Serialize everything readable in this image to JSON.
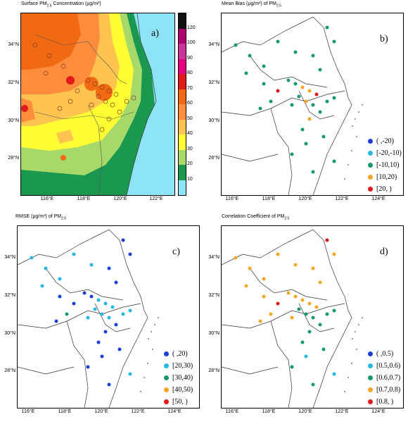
{
  "panels": {
    "a": {
      "title": "Surface PM",
      "title_sub": "2.5",
      "title_rest": " Concentration  (μg/m³)",
      "letter": "a)"
    },
    "b": {
      "title": "Mean Bias (μg/m³) of PM",
      "title_sub": "2.5",
      "letter": "b)"
    },
    "c": {
      "title": "RMSE (μg/m³) of PM",
      "title_sub": "2.5",
      "letter": "c)"
    },
    "d": {
      "title": "Correlation Coefficient of PM",
      "title_sub": "2.5",
      "letter": "d)"
    }
  },
  "axes": {
    "a_lat": [
      "34°N",
      "32°N",
      "30°N",
      "28°N"
    ],
    "a_lon": [
      "116°E",
      "118°E",
      "120°E",
      "122°E"
    ],
    "lat": [
      "34°N",
      "32°N",
      "30°N",
      "28°N"
    ],
    "lon": [
      "116°E",
      "118°E",
      "120°E",
      "122°E",
      "124°E"
    ]
  },
  "colorbar": {
    "ticks": [
      "120",
      "100",
      "90",
      "80",
      "70",
      "60",
      "50",
      "40",
      "30",
      "20",
      "10"
    ],
    "colors": [
      "#111111",
      "#b0006e",
      "#cc3399",
      "#e6007e",
      "#e31a1c",
      "#f16913",
      "#fd8d3c",
      "#fec44f",
      "#ffff33",
      "#a6d96a",
      "#1a9850",
      "#8ee4f7"
    ]
  },
  "legends": {
    "b": [
      {
        "label": "( ,-20)",
        "color": "#1a3fd6"
      },
      {
        "label": "[-20,-10)",
        "color": "#27b9e6"
      },
      {
        "label": "[-10,10)",
        "color": "#159a6a"
      },
      {
        "label": "[10,20)",
        "color": "#f5a623"
      },
      {
        "label": "[20, )",
        "color": "#e0191b"
      }
    ],
    "c": [
      {
        "label": "( ,20)",
        "color": "#1a3fd6"
      },
      {
        "label": "[20,30)",
        "color": "#27b9e6"
      },
      {
        "label": "[30,40)",
        "color": "#159a6a"
      },
      {
        "label": "[40,50)",
        "color": "#f5a623"
      },
      {
        "label": "[50, )",
        "color": "#e0191b"
      }
    ],
    "d": [
      {
        "label": "( ,0.5)",
        "color": "#1a3fd6"
      },
      {
        "label": "[0.5,0.6)",
        "color": "#27b9e6"
      },
      {
        "label": "[0.6,0.7)",
        "color": "#159a6a"
      },
      {
        "label": "[0.7,0.8)",
        "color": "#f5a623"
      },
      {
        "label": "[0.8, )",
        "color": "#e0191b"
      }
    ]
  }
}
